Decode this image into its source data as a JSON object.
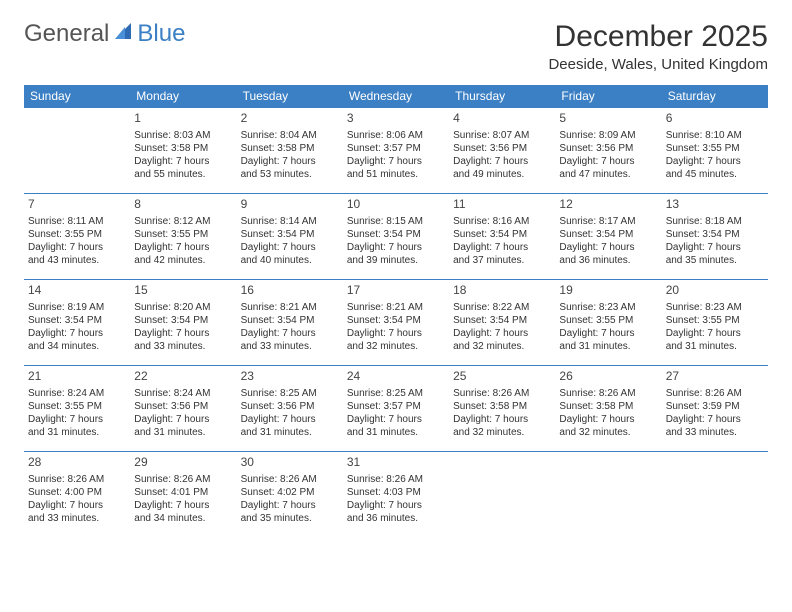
{
  "logo": {
    "text1": "General",
    "text2": "Blue"
  },
  "title": "December 2025",
  "location": "Deeside, Wales, United Kingdom",
  "colors": {
    "header_bg": "#3b7fc4",
    "header_text": "#ffffff",
    "border": "#3b7fc4",
    "logo_general": "#555555",
    "logo_blue": "#3b7fc4"
  },
  "day_names": [
    "Sunday",
    "Monday",
    "Tuesday",
    "Wednesday",
    "Thursday",
    "Friday",
    "Saturday"
  ],
  "weeks": [
    [
      null,
      {
        "n": "1",
        "sr": "Sunrise: 8:03 AM",
        "ss": "Sunset: 3:58 PM",
        "d1": "Daylight: 7 hours",
        "d2": "and 55 minutes."
      },
      {
        "n": "2",
        "sr": "Sunrise: 8:04 AM",
        "ss": "Sunset: 3:58 PM",
        "d1": "Daylight: 7 hours",
        "d2": "and 53 minutes."
      },
      {
        "n": "3",
        "sr": "Sunrise: 8:06 AM",
        "ss": "Sunset: 3:57 PM",
        "d1": "Daylight: 7 hours",
        "d2": "and 51 minutes."
      },
      {
        "n": "4",
        "sr": "Sunrise: 8:07 AM",
        "ss": "Sunset: 3:56 PM",
        "d1": "Daylight: 7 hours",
        "d2": "and 49 minutes."
      },
      {
        "n": "5",
        "sr": "Sunrise: 8:09 AM",
        "ss": "Sunset: 3:56 PM",
        "d1": "Daylight: 7 hours",
        "d2": "and 47 minutes."
      },
      {
        "n": "6",
        "sr": "Sunrise: 8:10 AM",
        "ss": "Sunset: 3:55 PM",
        "d1": "Daylight: 7 hours",
        "d2": "and 45 minutes."
      }
    ],
    [
      {
        "n": "7",
        "sr": "Sunrise: 8:11 AM",
        "ss": "Sunset: 3:55 PM",
        "d1": "Daylight: 7 hours",
        "d2": "and 43 minutes."
      },
      {
        "n": "8",
        "sr": "Sunrise: 8:12 AM",
        "ss": "Sunset: 3:55 PM",
        "d1": "Daylight: 7 hours",
        "d2": "and 42 minutes."
      },
      {
        "n": "9",
        "sr": "Sunrise: 8:14 AM",
        "ss": "Sunset: 3:54 PM",
        "d1": "Daylight: 7 hours",
        "d2": "and 40 minutes."
      },
      {
        "n": "10",
        "sr": "Sunrise: 8:15 AM",
        "ss": "Sunset: 3:54 PM",
        "d1": "Daylight: 7 hours",
        "d2": "and 39 minutes."
      },
      {
        "n": "11",
        "sr": "Sunrise: 8:16 AM",
        "ss": "Sunset: 3:54 PM",
        "d1": "Daylight: 7 hours",
        "d2": "and 37 minutes."
      },
      {
        "n": "12",
        "sr": "Sunrise: 8:17 AM",
        "ss": "Sunset: 3:54 PM",
        "d1": "Daylight: 7 hours",
        "d2": "and 36 minutes."
      },
      {
        "n": "13",
        "sr": "Sunrise: 8:18 AM",
        "ss": "Sunset: 3:54 PM",
        "d1": "Daylight: 7 hours",
        "d2": "and 35 minutes."
      }
    ],
    [
      {
        "n": "14",
        "sr": "Sunrise: 8:19 AM",
        "ss": "Sunset: 3:54 PM",
        "d1": "Daylight: 7 hours",
        "d2": "and 34 minutes."
      },
      {
        "n": "15",
        "sr": "Sunrise: 8:20 AM",
        "ss": "Sunset: 3:54 PM",
        "d1": "Daylight: 7 hours",
        "d2": "and 33 minutes."
      },
      {
        "n": "16",
        "sr": "Sunrise: 8:21 AM",
        "ss": "Sunset: 3:54 PM",
        "d1": "Daylight: 7 hours",
        "d2": "and 33 minutes."
      },
      {
        "n": "17",
        "sr": "Sunrise: 8:21 AM",
        "ss": "Sunset: 3:54 PM",
        "d1": "Daylight: 7 hours",
        "d2": "and 32 minutes."
      },
      {
        "n": "18",
        "sr": "Sunrise: 8:22 AM",
        "ss": "Sunset: 3:54 PM",
        "d1": "Daylight: 7 hours",
        "d2": "and 32 minutes."
      },
      {
        "n": "19",
        "sr": "Sunrise: 8:23 AM",
        "ss": "Sunset: 3:55 PM",
        "d1": "Daylight: 7 hours",
        "d2": "and 31 minutes."
      },
      {
        "n": "20",
        "sr": "Sunrise: 8:23 AM",
        "ss": "Sunset: 3:55 PM",
        "d1": "Daylight: 7 hours",
        "d2": "and 31 minutes."
      }
    ],
    [
      {
        "n": "21",
        "sr": "Sunrise: 8:24 AM",
        "ss": "Sunset: 3:55 PM",
        "d1": "Daylight: 7 hours",
        "d2": "and 31 minutes."
      },
      {
        "n": "22",
        "sr": "Sunrise: 8:24 AM",
        "ss": "Sunset: 3:56 PM",
        "d1": "Daylight: 7 hours",
        "d2": "and 31 minutes."
      },
      {
        "n": "23",
        "sr": "Sunrise: 8:25 AM",
        "ss": "Sunset: 3:56 PM",
        "d1": "Daylight: 7 hours",
        "d2": "and 31 minutes."
      },
      {
        "n": "24",
        "sr": "Sunrise: 8:25 AM",
        "ss": "Sunset: 3:57 PM",
        "d1": "Daylight: 7 hours",
        "d2": "and 31 minutes."
      },
      {
        "n": "25",
        "sr": "Sunrise: 8:26 AM",
        "ss": "Sunset: 3:58 PM",
        "d1": "Daylight: 7 hours",
        "d2": "and 32 minutes."
      },
      {
        "n": "26",
        "sr": "Sunrise: 8:26 AM",
        "ss": "Sunset: 3:58 PM",
        "d1": "Daylight: 7 hours",
        "d2": "and 32 minutes."
      },
      {
        "n": "27",
        "sr": "Sunrise: 8:26 AM",
        "ss": "Sunset: 3:59 PM",
        "d1": "Daylight: 7 hours",
        "d2": "and 33 minutes."
      }
    ],
    [
      {
        "n": "28",
        "sr": "Sunrise: 8:26 AM",
        "ss": "Sunset: 4:00 PM",
        "d1": "Daylight: 7 hours",
        "d2": "and 33 minutes."
      },
      {
        "n": "29",
        "sr": "Sunrise: 8:26 AM",
        "ss": "Sunset: 4:01 PM",
        "d1": "Daylight: 7 hours",
        "d2": "and 34 minutes."
      },
      {
        "n": "30",
        "sr": "Sunrise: 8:26 AM",
        "ss": "Sunset: 4:02 PM",
        "d1": "Daylight: 7 hours",
        "d2": "and 35 minutes."
      },
      {
        "n": "31",
        "sr": "Sunrise: 8:26 AM",
        "ss": "Sunset: 4:03 PM",
        "d1": "Daylight: 7 hours",
        "d2": "and 36 minutes."
      },
      null,
      null,
      null
    ]
  ]
}
